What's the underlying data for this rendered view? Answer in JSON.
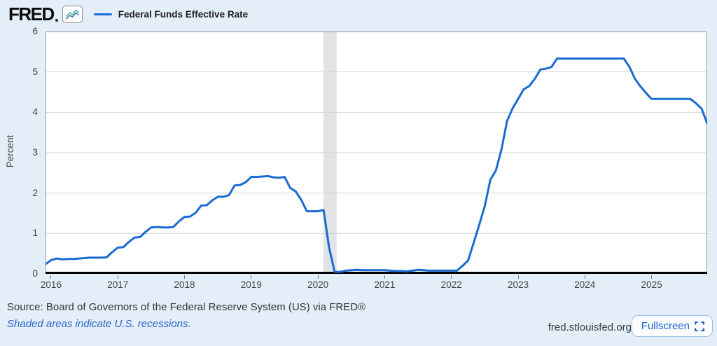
{
  "header": {
    "logo_text": "FRED",
    "series_label": "Federal Funds Effective Rate"
  },
  "icons": {
    "logo_badge": "line-chart-icon",
    "logo_registered": "registered-trademark-dot",
    "fullscreen": "fullscreen-corners-icon",
    "legend_dash": "series-color-dash"
  },
  "chart_data": {
    "type": "line",
    "title": "Federal Funds Effective Rate",
    "xlabel": "",
    "ylabel": "Percent",
    "ylim": [
      0,
      6
    ],
    "yticks": [
      0,
      1,
      2,
      3,
      4,
      5,
      6
    ],
    "xticks": [
      "2016",
      "2017",
      "2018",
      "2019",
      "2020",
      "2021",
      "2022",
      "2023",
      "2024",
      "2025"
    ],
    "x_start": "2015-12",
    "x_end": "2025-11",
    "frequency": "monthly",
    "grid": "horizontal-only",
    "legend_position": "top-left",
    "recession_bands": [
      {
        "start": "2020-02",
        "end": "2020-04"
      }
    ],
    "series": [
      {
        "name": "Federal Funds Effective Rate",
        "color": "#1b6bd3",
        "values": [
          0.24,
          0.34,
          0.38,
          0.36,
          0.37,
          0.37,
          0.38,
          0.39,
          0.4,
          0.4,
          0.4,
          0.41,
          0.54,
          0.65,
          0.66,
          0.79,
          0.9,
          0.91,
          1.04,
          1.15,
          1.16,
          1.15,
          1.15,
          1.16,
          1.3,
          1.41,
          1.42,
          1.51,
          1.69,
          1.7,
          1.82,
          1.91,
          1.91,
          1.95,
          2.19,
          2.2,
          2.27,
          2.4,
          2.4,
          2.41,
          2.42,
          2.39,
          2.38,
          2.4,
          2.13,
          2.04,
          1.83,
          1.55,
          1.55,
          1.55,
          1.58,
          0.65,
          0.05,
          0.05,
          0.08,
          0.09,
          0.1,
          0.09,
          0.09,
          0.09,
          0.09,
          0.09,
          0.08,
          0.07,
          0.07,
          0.06,
          0.08,
          0.1,
          0.09,
          0.08,
          0.08,
          0.08,
          0.08,
          0.08,
          0.08,
          0.2,
          0.33,
          0.77,
          1.21,
          1.68,
          2.33,
          2.56,
          3.08,
          3.78,
          4.1,
          4.33,
          4.57,
          4.65,
          4.83,
          5.06,
          5.08,
          5.12,
          5.33,
          5.33,
          5.33,
          5.33,
          5.33,
          5.33,
          5.33,
          5.33,
          5.33,
          5.33,
          5.33,
          5.33,
          5.33,
          5.13,
          4.83,
          4.64,
          4.48,
          4.33,
          4.33,
          4.33,
          4.33,
          4.33,
          4.33,
          4.33,
          4.33,
          4.22,
          4.09,
          3.72
        ]
      }
    ]
  },
  "footer": {
    "source_text": "Source: Board of Governors of the Federal Reserve System (US) via FRED®",
    "recession_note": "Shaded areas indicate U.S. recessions.",
    "site_url": "fred.stlouisfed.org",
    "fullscreen_label": "Fullscreen"
  },
  "colors": {
    "background": "#e4eef9",
    "plot_background": "#ffffff",
    "line": "#1b6bd3",
    "grid": "#d4d4d4",
    "frame": "#9a9a9a",
    "axis": "#000000",
    "recession_band": "#e1e3e5",
    "link": "#2a65c9",
    "tick_text": "#424242",
    "source_text": "#333333"
  }
}
